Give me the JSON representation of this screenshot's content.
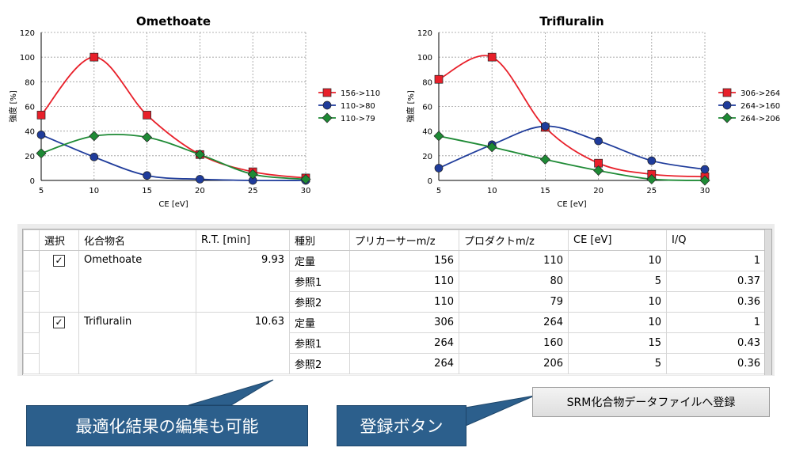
{
  "charts": [
    {
      "title": "Omethoate",
      "xlabel": "CE [eV]",
      "ylabel": "強度 [%]",
      "x_ticks": [
        "5",
        "10",
        "15",
        "20",
        "25",
        "30"
      ],
      "y_ticks": [
        "0",
        "20",
        "40",
        "60",
        "80",
        "100",
        "120"
      ],
      "legend": [
        "156->110",
        "110->80",
        "110->79"
      ]
    },
    {
      "title": "Trifluralin",
      "xlabel": "CE [eV]",
      "ylabel": "強度 [%]",
      "x_ticks": [
        "5",
        "10",
        "15",
        "20",
        "25",
        "30"
      ],
      "y_ticks": [
        "0",
        "20",
        "40",
        "60",
        "80",
        "100",
        "120"
      ],
      "legend": [
        "306->264",
        "264->160",
        "264->206"
      ]
    }
  ],
  "chart_data": [
    {
      "type": "line",
      "title": "Omethoate",
      "xlabel": "CE [eV]",
      "ylabel": "強度 [%]",
      "x": [
        5,
        10,
        15,
        20,
        25,
        30
      ],
      "xlim": [
        5,
        30
      ],
      "ylim": [
        0,
        120
      ],
      "grid": true,
      "legend_position": "right",
      "series": [
        {
          "name": "156->110",
          "color": "#e8202a",
          "marker": "square",
          "values": [
            53,
            100,
            53,
            21,
            7,
            2
          ]
        },
        {
          "name": "110->80",
          "color": "#1f3c9b",
          "marker": "circle",
          "values": [
            37,
            19,
            4,
            1,
            0,
            0
          ]
        },
        {
          "name": "110->79",
          "color": "#1e8a35",
          "marker": "diamond",
          "values": [
            22,
            36,
            35,
            21,
            5,
            1
          ]
        }
      ]
    },
    {
      "type": "line",
      "title": "Trifluralin",
      "xlabel": "CE [eV]",
      "ylabel": "強度 [%]",
      "x": [
        5,
        10,
        15,
        20,
        25,
        30
      ],
      "xlim": [
        5,
        30
      ],
      "ylim": [
        0,
        120
      ],
      "grid": true,
      "legend_position": "right",
      "series": [
        {
          "name": "306->264",
          "color": "#e8202a",
          "marker": "square",
          "values": [
            82,
            100,
            43,
            14,
            5,
            3
          ]
        },
        {
          "name": "264->160",
          "color": "#1f3c9b",
          "marker": "circle",
          "values": [
            10,
            29,
            44,
            32,
            16,
            9
          ]
        },
        {
          "name": "264->206",
          "color": "#1e8a35",
          "marker": "diamond",
          "values": [
            36,
            27,
            17,
            8,
            1,
            0
          ]
        }
      ]
    }
  ],
  "table": {
    "headers": [
      "選択",
      "化合物名",
      "R.T. [min]",
      "種別",
      "プリカーサーm/z",
      "プロダクトm/z",
      "CE [eV]",
      "I/Q"
    ],
    "groups": [
      {
        "selected": true,
        "compound": "Omethoate",
        "rt": "9.93",
        "rows": [
          {
            "type": "定量",
            "precursor": "156",
            "product": "110",
            "ce": "10",
            "iq": "1"
          },
          {
            "type": "参照1",
            "precursor": "110",
            "product": "80",
            "ce": "5",
            "iq": "0.37"
          },
          {
            "type": "参照2",
            "precursor": "110",
            "product": "79",
            "ce": "10",
            "iq": "0.36"
          }
        ]
      },
      {
        "selected": true,
        "compound": "Trifluralin",
        "rt": "10.63",
        "rows": [
          {
            "type": "定量",
            "precursor": "306",
            "product": "264",
            "ce": "10",
            "iq": "1"
          },
          {
            "type": "参照1",
            "precursor": "264",
            "product": "160",
            "ce": "15",
            "iq": "0.43"
          },
          {
            "type": "参照2",
            "precursor": "264",
            "product": "206",
            "ce": "5",
            "iq": "0.36"
          }
        ]
      }
    ]
  },
  "register_button": "SRM化合物データファイルへ登録",
  "callouts": {
    "edit": "最適化結果の編集も可能",
    "register": "登録ボタン"
  },
  "check_mark": "✓",
  "colors": {
    "callout_bg": "#2c5f8c",
    "red": "#e8202a",
    "blue": "#1f3c9b",
    "green": "#1e8a35"
  }
}
